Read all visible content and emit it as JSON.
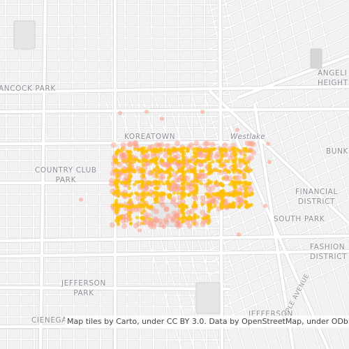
{
  "map": {
    "labels": {
      "hancock_park": "ANCOCK PARK",
      "koreatown": "KOREATOWN",
      "westlake": "Westlake",
      "angelino_heights_1": "ANGELI",
      "angelino_heights_2": "HEIGHT",
      "country_club_park_1": "COUNTRY CLUB",
      "country_club_park_2": "PARK",
      "financial_district_1": "FINANCIAL",
      "financial_district_2": "DISTRICT",
      "bunker": "BUNK",
      "south_park": "SOUTH PARK",
      "fashion_district_1": "FASHION",
      "fashion_district_2": "DISTRICT",
      "jefferson_park_1": "JEFFERSON",
      "jefferson_park_2": "PARK",
      "cienega": "CIENEGA",
      "maple_avenue": "MAPLE AVENUE",
      "jefferson_bottom": "JEFFERSON"
    },
    "attribution": "Map tiles by Carto, under CC BY 3.0. Data by OpenStreetMap, under ODbL.",
    "colors": {
      "background": "#f2f2f2",
      "street": "#ffffff",
      "street_outline": "#dadada",
      "highway": "#ffffff",
      "heat_core": "#ffc000",
      "heat_edge": "#ff9a80"
    }
  }
}
